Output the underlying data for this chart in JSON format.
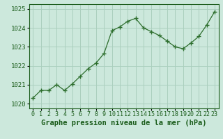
{
  "x": [
    0,
    1,
    2,
    3,
    4,
    5,
    6,
    7,
    8,
    9,
    10,
    11,
    12,
    13,
    14,
    15,
    16,
    17,
    18,
    19,
    20,
    21,
    22,
    23
  ],
  "y": [
    1020.3,
    1020.7,
    1020.7,
    1021.0,
    1020.7,
    1021.05,
    1021.45,
    1021.85,
    1022.15,
    1022.65,
    1023.85,
    1024.05,
    1024.35,
    1024.5,
    1024.0,
    1023.8,
    1023.6,
    1023.3,
    1023.0,
    1022.9,
    1023.2,
    1023.55,
    1024.15,
    1024.85
  ],
  "line_color": "#2d6e2d",
  "marker_color": "#2d6e2d",
  "bg_color": "#cce8dc",
  "grid_color": "#aacfbe",
  "text_color": "#1a5c1a",
  "title": "Graphe pression niveau de la mer (hPa)",
  "ylim": [
    1019.75,
    1025.25
  ],
  "yticks": [
    1020,
    1021,
    1022,
    1023,
    1024,
    1025
  ],
  "tick_fontsize": 6.5,
  "title_fontsize": 7.5
}
